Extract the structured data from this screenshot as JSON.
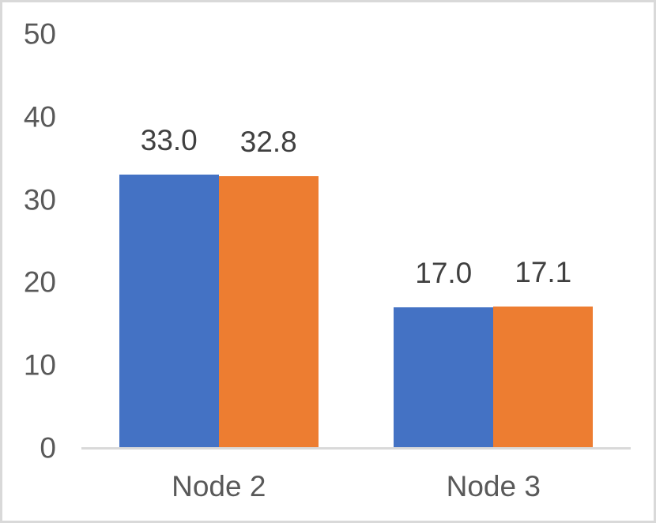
{
  "chart_data": {
    "type": "bar",
    "title": "",
    "xlabel": "",
    "ylabel": "",
    "categories": [
      "Node 2",
      "Node 3"
    ],
    "series": [
      {
        "color": "#4472C4",
        "values": [
          33.0,
          17.0
        ],
        "labels": [
          "33.0",
          "17.0"
        ]
      },
      {
        "color": "#ED7D31",
        "values": [
          32.8,
          17.1
        ],
        "labels": [
          "32.8",
          "17.1"
        ]
      }
    ],
    "yticks": [
      0,
      10,
      20,
      30,
      40,
      50
    ],
    "ylim": [
      0,
      50
    ],
    "grid": false,
    "legend": "none",
    "colors": {
      "background": "#FFFFFF",
      "frame_border": "#D9D9D9",
      "axis_line": "#D9D9D9",
      "tick_label": "#595959",
      "category_label": "#595959",
      "data_label": "#404040",
      "series_blue": "#4472C4",
      "series_orange": "#ED7D31"
    }
  }
}
